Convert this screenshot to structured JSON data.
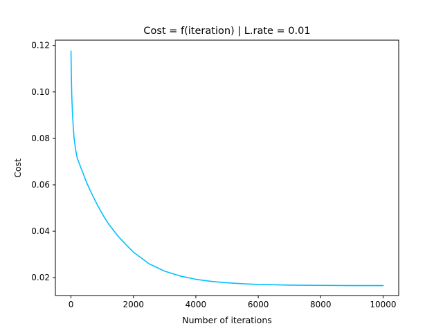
{
  "chart_data": {
    "type": "line",
    "title": "Cost = f(iteration) | L.rate = 0.01",
    "xlabel": "Number of iterations",
    "ylabel": "Cost",
    "xlim": [
      -500,
      10500
    ],
    "ylim": [
      0.0123,
      0.1223
    ],
    "xticks": [
      0,
      2000,
      4000,
      6000,
      8000,
      10000
    ],
    "xtick_labels": [
      "0",
      "2000",
      "4000",
      "6000",
      "8000",
      "10000"
    ],
    "yticks": [
      0.02,
      0.04,
      0.06,
      0.08,
      0.1,
      0.12
    ],
    "ytick_labels": [
      "0.02",
      "0.04",
      "0.06",
      "0.08",
      "0.10",
      "0.12"
    ],
    "grid": false,
    "series": [
      {
        "color": "#00bfff",
        "x": [
          0,
          10,
          25,
          50,
          75,
          100,
          150,
          200,
          300,
          400,
          500,
          600,
          800,
          1000,
          1200,
          1500,
          1800,
          2000,
          2500,
          3000,
          3500,
          4000,
          4500,
          5000,
          5500,
          6000,
          7000,
          8000,
          9000,
          10000
        ],
        "y": [
          0.1175,
          0.108,
          0.0985,
          0.09,
          0.0845,
          0.08,
          0.075,
          0.0715,
          0.068,
          0.0645,
          0.061,
          0.058,
          0.0525,
          0.0475,
          0.0432,
          0.038,
          0.0337,
          0.031,
          0.026,
          0.0228,
          0.0207,
          0.0193,
          0.0184,
          0.0178,
          0.0174,
          0.0171,
          0.0168,
          0.0167,
          0.0166,
          0.0166
        ]
      }
    ]
  }
}
